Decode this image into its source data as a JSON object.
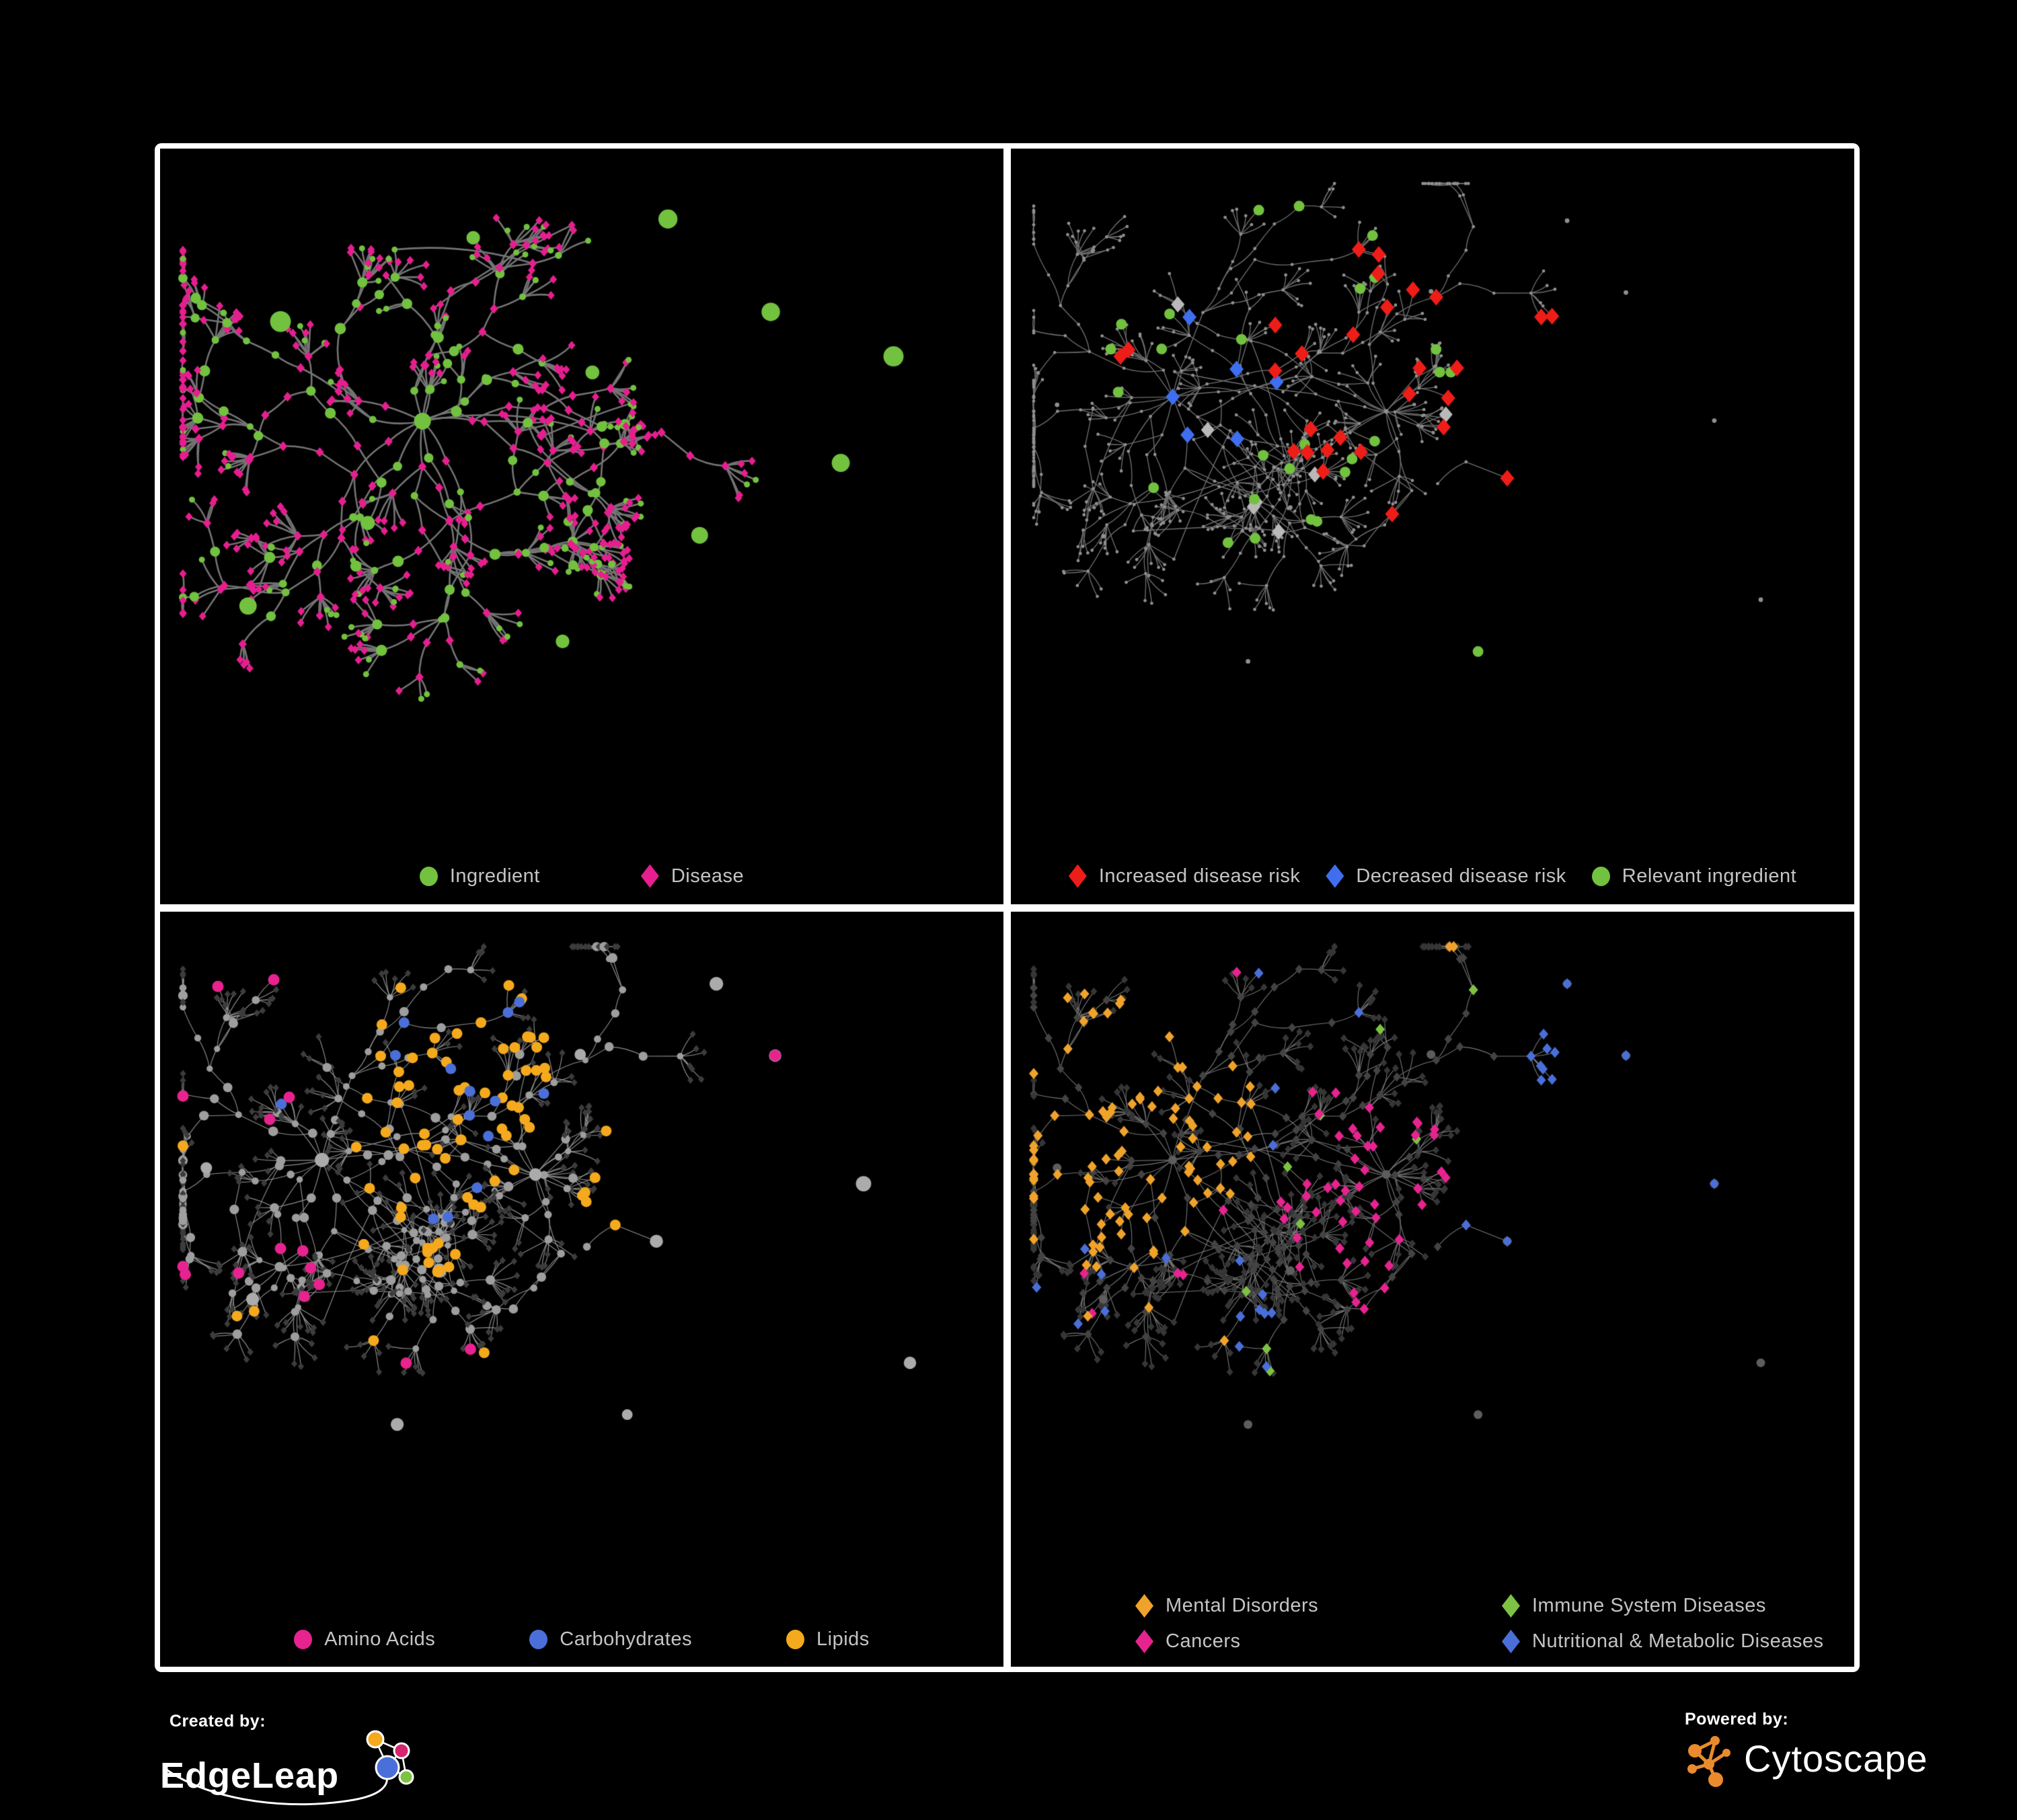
{
  "page": {
    "background": "#000000",
    "grid_line_color": "#ffffff"
  },
  "chart_data": [
    {
      "type": "network",
      "panel": "top-left",
      "description": "Ingredient-disease association network: green circle nodes (ingredients) and pink diamond nodes (diseases) joined by curved gray edges; one large dense hub region left of center with branching chains and star-shaped leaf fans at the periphery",
      "legend": [
        {
          "label": "Ingredient",
          "shape": "circle",
          "color": "#72C13F"
        },
        {
          "label": "Disease",
          "shape": "diamond",
          "color": "#E61E8F"
        }
      ],
      "approx_node_count": 640,
      "edge_color": "#747474",
      "background": "#000000"
    },
    {
      "type": "network",
      "panel": "top-right",
      "description": "Same network rendered in gray with tiny dot nodes; highlighted large diamonds mark disease-risk changes and green circles mark relevant ingredients, concentrated in the central-left region with a few outliers right and bottom",
      "legend": [
        {
          "label": "Increased disease risk",
          "shape": "diamond",
          "color": "#EE1D18"
        },
        {
          "label": "Decreased disease risk",
          "shape": "diamond",
          "color": "#3F6EF0"
        },
        {
          "label": "Relevant ingredient",
          "shape": "circle",
          "color": "#72C13F"
        }
      ],
      "highlight_counts": {
        "increased_disease_risk": 39,
        "decreased_disease_risk": 9,
        "unchanged_gray_diamonds": 9,
        "relevant_ingredients": 32
      },
      "unchanged_color": "#B9B9B9",
      "approx_node_count": 760,
      "edge_color": "#6F6F6F",
      "background": "#000000"
    },
    {
      "type": "network",
      "panel": "bottom-left",
      "description": "Metabolite network: gray circle nodes with dark-gray diamond leaf nodes; colored circles mark nutrient classes - a dense lipids (orange) cluster upper middle, carbohydrates (blue) mixed into that cluster, amino acids (pink) scattered around the periphery",
      "legend": [
        {
          "label": "Amino Acids",
          "shape": "circle",
          "color": "#E6238F"
        },
        {
          "label": "Carbohydrates",
          "shape": "circle",
          "color": "#4A6FD8"
        },
        {
          "label": "Lipids",
          "shape": "circle",
          "color": "#F5A91D"
        }
      ],
      "highlight_counts": {
        "amino_acids": 16,
        "carbohydrates": 16,
        "lipids": 89
      },
      "approx_node_count": 760,
      "edge_color": "#8F8F8F",
      "background": "#000000"
    },
    {
      "type": "network",
      "panel": "bottom-right",
      "description": "Disease-class network: all nodes are dark-gray diamonds; colored diamonds mark disease classes - mental disorders (orange) dense cluster on the left, cancers (pink) central cluster, nutritional & metabolic diseases (blue) center-right and top-right, immune system diseases (green) sparse in the middle",
      "legend": [
        {
          "label": "Mental Disorders",
          "shape": "diamond",
          "color": "#F0A32B"
        },
        {
          "label": "Immune System Diseases",
          "shape": "diamond",
          "color": "#7DC242"
        },
        {
          "label": "Cancers",
          "shape": "diamond",
          "color": "#E6238F"
        },
        {
          "label": "Nutritional & Metabolic Diseases",
          "shape": "diamond",
          "color": "#4A6FD8"
        }
      ],
      "highlight_counts": {
        "mental_disorders": 98,
        "cancers": 62,
        "nutritional_metabolic_diseases": 72,
        "immune_system_diseases": 9
      },
      "approx_node_count": 760,
      "edge_color": "#777777",
      "background": "#000000"
    }
  ],
  "footer": {
    "created_by": {
      "label": "Created by:",
      "name": "EdgeLeap"
    },
    "powered_by": {
      "label": "Powered by:",
      "name": "Cytoscape"
    },
    "edgeleap_logo_colors": {
      "orange": "#F5A91D",
      "pink": "#D6246E",
      "blue": "#4A6FD8",
      "green": "#7DC242",
      "line": "#FFFFFF"
    },
    "cytoscape_logo_color": "#E98B2D"
  }
}
